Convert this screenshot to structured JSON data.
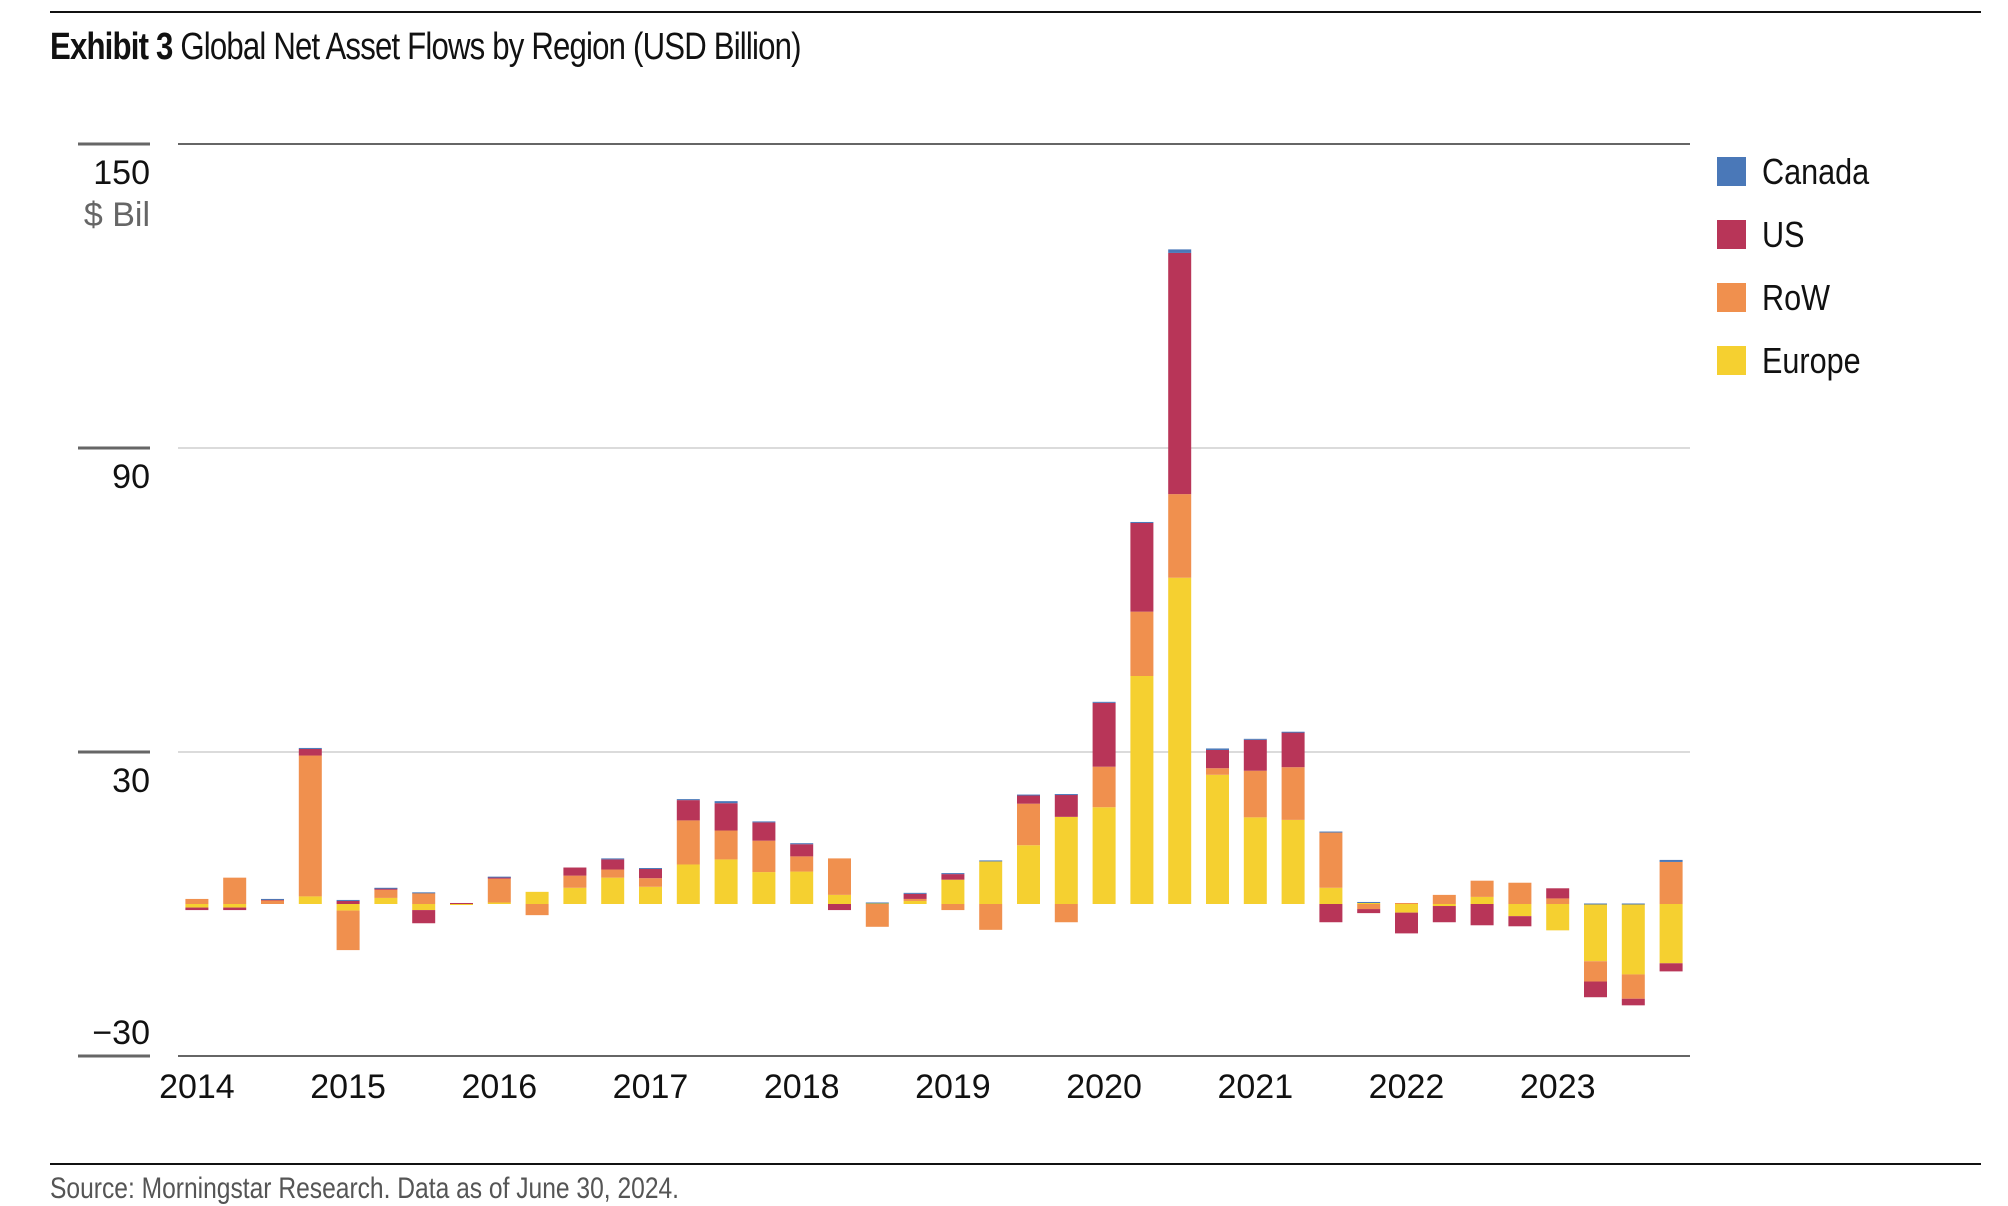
{
  "header": {
    "exhibit": "Exhibit 3",
    "title": "Global Net Asset Flows by Region (USD Billion)"
  },
  "footer": {
    "source": "Source: Morningstar Research. Data as of June 30, 2024."
  },
  "colors": {
    "Canada": "#4a78b8",
    "US": "#b83558",
    "RoW": "#f0904e",
    "Europe": "#f5d030",
    "gridline": "#cfcfcf",
    "axis": "#666666"
  },
  "chart_data": {
    "type": "bar",
    "stacked": true,
    "title": "Global Net Asset Flows by Region (USD Billion)",
    "xlabel": "",
    "ylabel": "$ Bil",
    "ylim": [
      -30,
      150
    ],
    "yticks": [
      -30,
      30,
      90,
      150
    ],
    "ytick_labels": [
      "−30",
      "30",
      "90",
      "150"
    ],
    "xtick_labels": [
      "2014",
      "2015",
      "2016",
      "2017",
      "2018",
      "2019",
      "2020",
      "2021",
      "2022",
      "2023"
    ],
    "grid": true,
    "legend_position": "top-right",
    "legend": [
      "Canada",
      "US",
      "RoW",
      "Europe"
    ],
    "categories": [
      "Q1 2014",
      "Q2 2014",
      "Q3 2014",
      "Q4 2014",
      "Q1 2015",
      "Q2 2015",
      "Q3 2015",
      "Q4 2015",
      "Q1 2016",
      "Q2 2016",
      "Q3 2016",
      "Q4 2016",
      "Q1 2017",
      "Q2 2017",
      "Q3 2017",
      "Q4 2017",
      "Q1 2018",
      "Q2 2018",
      "Q3 2018",
      "Q4 2018",
      "Q1 2019",
      "Q2 2019",
      "Q3 2019",
      "Q4 2019",
      "Q1 2020",
      "Q2 2020",
      "Q3 2020",
      "Q4 2020",
      "Q1 2021",
      "Q2 2021",
      "Q3 2021",
      "Q4 2021",
      "Q1 2022",
      "Q2 2022",
      "Q3 2022",
      "Q4 2022",
      "Q1 2023",
      "Q2 2023",
      "Q3 2023",
      "Q4 2023"
    ],
    "series": [
      {
        "name": "Europe",
        "values": [
          -0.7,
          -0.7,
          0.0,
          1.5,
          -1.3,
          1.2,
          -1.2,
          -0.2,
          0.3,
          2.4,
          3.2,
          5.2,
          3.4,
          7.8,
          8.8,
          6.3,
          6.4,
          1.8,
          0.2,
          0.6,
          4.8,
          8.4,
          11.6,
          17.2,
          19.1,
          45.0,
          64.4,
          25.5,
          17.1,
          16.6,
          3.2,
          0.2,
          -1.7,
          -0.4,
          1.4,
          -2.4,
          -5.2,
          -11.3,
          -13.9,
          -11.7
        ]
      },
      {
        "name": "RoW",
        "values": [
          1.0,
          5.2,
          0.7,
          27.8,
          -7.8,
          1.6,
          2.2,
          0.0,
          4.7,
          -2.2,
          2.4,
          1.6,
          1.7,
          8.7,
          5.7,
          6.2,
          3.0,
          7.2,
          -4.5,
          0.4,
          -1.2,
          -5.1,
          8.2,
          -3.6,
          8.0,
          12.7,
          16.5,
          1.3,
          9.2,
          10.4,
          10.9,
          -1.0,
          0.2,
          1.8,
          3.2,
          4.2,
          1.1,
          -4.0,
          -4.8,
          8.3
        ]
      },
      {
        "name": "US",
        "values": [
          -0.5,
          -0.5,
          0.2,
          1.3,
          0.6,
          0.3,
          -2.6,
          0.2,
          0.3,
          0.0,
          1.6,
          2.0,
          1.9,
          4.0,
          5.4,
          3.6,
          2.4,
          -1.2,
          0.0,
          1.0,
          1.1,
          0.0,
          1.7,
          4.4,
          12.6,
          17.5,
          47.6,
          3.6,
          6.1,
          6.9,
          -3.6,
          -0.8,
          -4.1,
          -3.2,
          -4.2,
          -2.0,
          2.0,
          -3.1,
          -1.3,
          -1.6
        ]
      },
      {
        "name": "Canada",
        "values": [
          0.0,
          0.0,
          0.1,
          0.2,
          0.2,
          0.1,
          0.1,
          0.0,
          0.1,
          0.0,
          0.0,
          0.2,
          0.1,
          0.2,
          0.4,
          0.2,
          0.2,
          0.0,
          0.1,
          0.2,
          0.2,
          0.2,
          0.1,
          0.1,
          0.2,
          0.2,
          0.7,
          0.3,
          0.2,
          0.1,
          0.2,
          0.2,
          0.0,
          0.0,
          0.0,
          0.0,
          0.0,
          0.1,
          0.1,
          0.4
        ]
      }
    ]
  }
}
